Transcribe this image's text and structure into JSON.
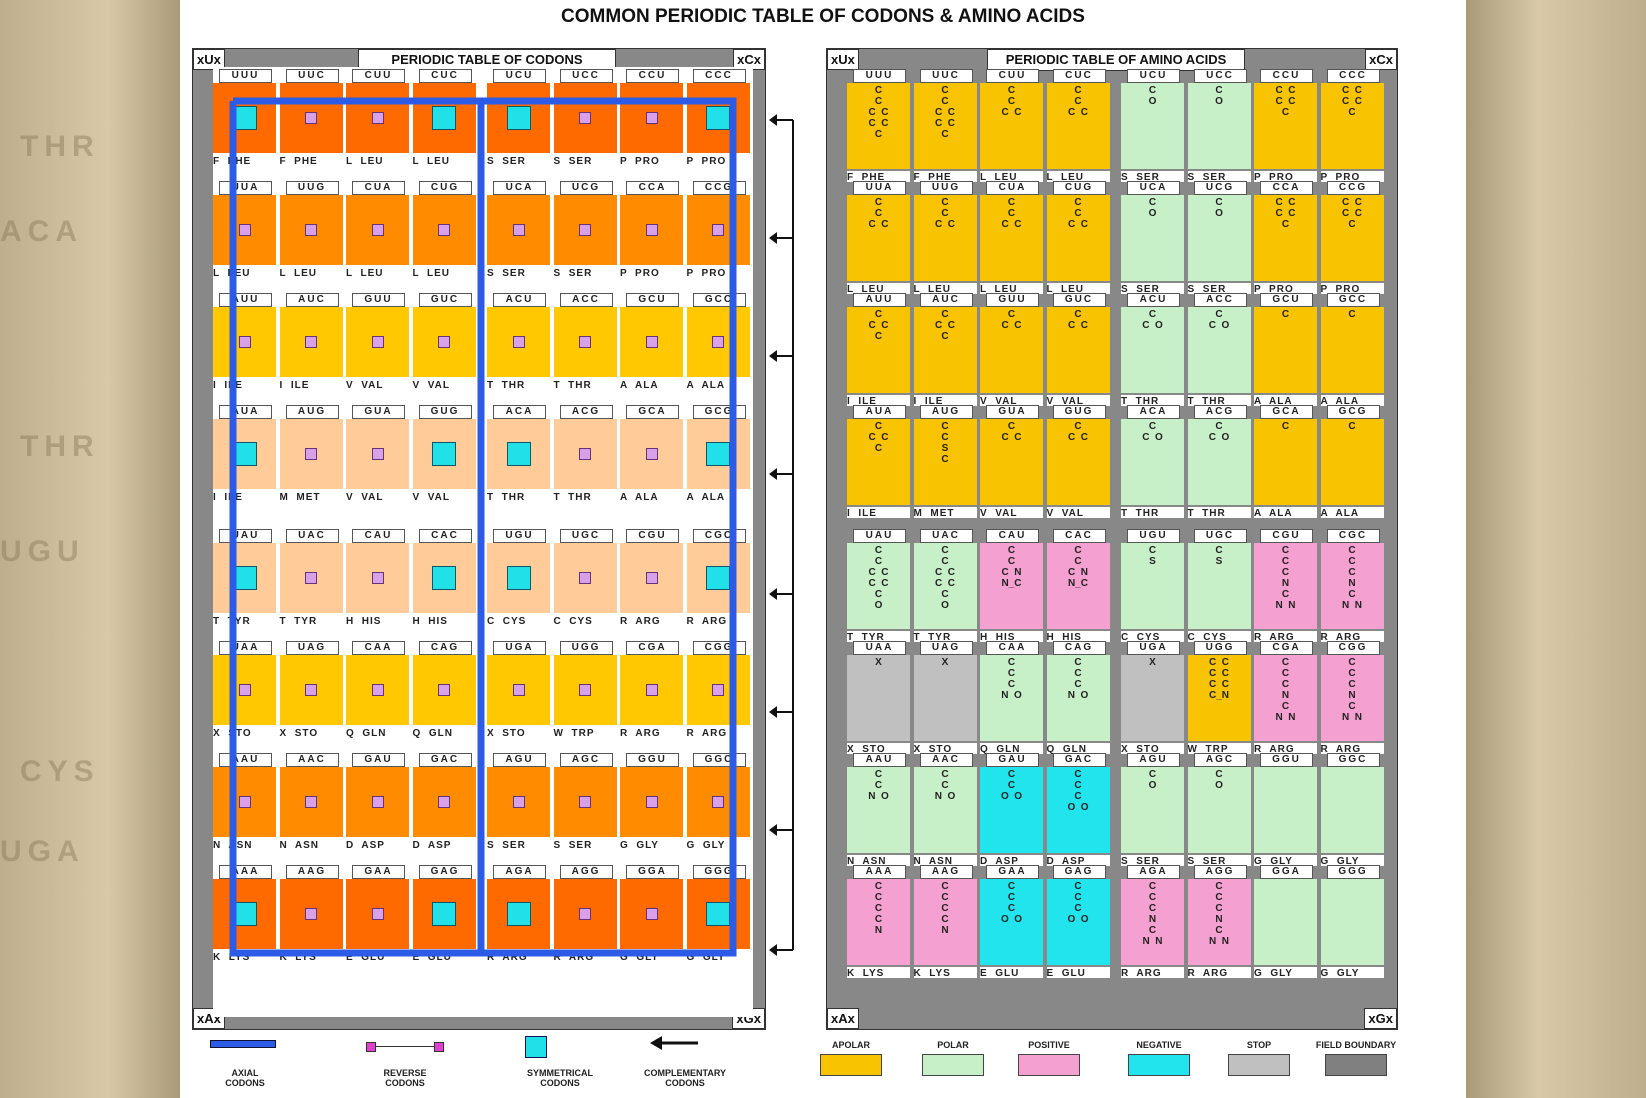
{
  "title": "COMMON PERIODIC TABLE OF CODONS & AMINO ACIDS",
  "left_panel": {
    "tab": "PERIODIC TABLE OF CODONS",
    "corners": [
      "xUx",
      "xCx",
      "xAx",
      "xGx"
    ]
  },
  "right_panel": {
    "tab": "PERIODIC TABLE OF AMINO ACIDS",
    "corners": [
      "xUx",
      "xCx",
      "xAx",
      "xGx"
    ]
  },
  "colors": {
    "apolar": "#f8c300",
    "polar": "#c8f0c8",
    "positive": "#f4a0d0",
    "negative": "#22e4ec",
    "stop": "#c0c0c0",
    "field_boundary": "#808080",
    "codon_red": "#ff6a00",
    "codon_orange": "#ff8c00",
    "codon_yellow": "#ffc800",
    "codon_peach": "#ffcc99",
    "axial": "#2c5be8"
  },
  "rows": [
    [
      {
        "c": "UUU",
        "a": "F  PHE",
        "col": "red",
        "m": "sym"
      },
      {
        "c": "UUC",
        "a": "F  PHE",
        "col": "red",
        "m": "rev"
      },
      {
        "c": "CUU",
        "a": "L  LEU",
        "col": "red",
        "m": "rev"
      },
      {
        "c": "CUC",
        "a": "L  LEU",
        "col": "red",
        "m": "sym"
      },
      {
        "c": "UCU",
        "a": "S  SER",
        "col": "red",
        "m": "sym"
      },
      {
        "c": "UCC",
        "a": "S  SER",
        "col": "red",
        "m": "rev"
      },
      {
        "c": "CCU",
        "a": "P  PRO",
        "col": "red",
        "m": "rev"
      },
      {
        "c": "CCC",
        "a": "P  PRO",
        "col": "red",
        "m": "sym"
      }
    ],
    [
      {
        "c": "UUA",
        "a": "L  LEU",
        "col": "orange",
        "m": "rev"
      },
      {
        "c": "UUG",
        "a": "L  LEU",
        "col": "orange",
        "m": "rev"
      },
      {
        "c": "CUA",
        "a": "L  LEU",
        "col": "orange",
        "m": "rev"
      },
      {
        "c": "CUG",
        "a": "L  LEU",
        "col": "orange",
        "m": "rev"
      },
      {
        "c": "UCA",
        "a": "S  SER",
        "col": "orange",
        "m": "rev"
      },
      {
        "c": "UCG",
        "a": "S  SER",
        "col": "orange",
        "m": "rev"
      },
      {
        "c": "CCA",
        "a": "P  PRO",
        "col": "orange",
        "m": "rev"
      },
      {
        "c": "CCG",
        "a": "P  PRO",
        "col": "orange",
        "m": "rev"
      }
    ],
    [
      {
        "c": "AUU",
        "a": "I  ILE",
        "col": "yellow",
        "m": "rev"
      },
      {
        "c": "AUC",
        "a": "I  ILE",
        "col": "yellow",
        "m": "rev"
      },
      {
        "c": "GUU",
        "a": "V  VAL",
        "col": "yellow",
        "m": "rev"
      },
      {
        "c": "GUC",
        "a": "V  VAL",
        "col": "yellow",
        "m": "rev"
      },
      {
        "c": "ACU",
        "a": "T  THR",
        "col": "yellow",
        "m": "rev"
      },
      {
        "c": "ACC",
        "a": "T  THR",
        "col": "yellow",
        "m": "rev"
      },
      {
        "c": "GCU",
        "a": "A  ALA",
        "col": "yellow",
        "m": "rev"
      },
      {
        "c": "GCC",
        "a": "A  ALA",
        "col": "yellow",
        "m": "rev"
      }
    ],
    [
      {
        "c": "AUA",
        "a": "I  ILE",
        "col": "peach",
        "m": "sym"
      },
      {
        "c": "AUG",
        "a": "M  MET",
        "col": "peach",
        "m": "rev"
      },
      {
        "c": "GUA",
        "a": "V  VAL",
        "col": "peach",
        "m": "rev"
      },
      {
        "c": "GUG",
        "a": "V  VAL",
        "col": "peach",
        "m": "sym"
      },
      {
        "c": "ACA",
        "a": "T  THR",
        "col": "peach",
        "m": "sym"
      },
      {
        "c": "ACG",
        "a": "T  THR",
        "col": "peach",
        "m": "rev"
      },
      {
        "c": "GCA",
        "a": "A  ALA",
        "col": "peach",
        "m": "rev"
      },
      {
        "c": "GCG",
        "a": "A  ALA",
        "col": "peach",
        "m": "sym"
      }
    ],
    [
      {
        "c": "UAU",
        "a": "T  TYR",
        "col": "peach",
        "m": "sym"
      },
      {
        "c": "UAC",
        "a": "T  TYR",
        "col": "peach",
        "m": "rev"
      },
      {
        "c": "CAU",
        "a": "H  HIS",
        "col": "peach",
        "m": "rev"
      },
      {
        "c": "CAC",
        "a": "H  HIS",
        "col": "peach",
        "m": "sym"
      },
      {
        "c": "UGU",
        "a": "C  CYS",
        "col": "peach",
        "m": "sym"
      },
      {
        "c": "UGC",
        "a": "C  CYS",
        "col": "peach",
        "m": "rev"
      },
      {
        "c": "CGU",
        "a": "R  ARG",
        "col": "peach",
        "m": "rev"
      },
      {
        "c": "CGC",
        "a": "R  ARG",
        "col": "peach",
        "m": "sym"
      }
    ],
    [
      {
        "c": "UAA",
        "a": "X  STO",
        "col": "yellow",
        "m": "rev"
      },
      {
        "c": "UAG",
        "a": "X  STO",
        "col": "yellow",
        "m": "rev"
      },
      {
        "c": "CAA",
        "a": "Q  GLN",
        "col": "yellow",
        "m": "rev"
      },
      {
        "c": "CAG",
        "a": "Q  GLN",
        "col": "yellow",
        "m": "rev"
      },
      {
        "c": "UGA",
        "a": "X  STO",
        "col": "yellow",
        "m": "rev"
      },
      {
        "c": "UGG",
        "a": "W  TRP",
        "col": "yellow",
        "m": "rev"
      },
      {
        "c": "CGA",
        "a": "R  ARG",
        "col": "yellow",
        "m": "rev"
      },
      {
        "c": "CGG",
        "a": "R  ARG",
        "col": "yellow",
        "m": "rev"
      }
    ],
    [
      {
        "c": "AAU",
        "a": "N  ASN",
        "col": "orange",
        "m": "rev"
      },
      {
        "c": "AAC",
        "a": "N  ASN",
        "col": "orange",
        "m": "rev"
      },
      {
        "c": "GAU",
        "a": "D  ASP",
        "col": "orange",
        "m": "rev"
      },
      {
        "c": "GAC",
        "a": "D  ASP",
        "col": "orange",
        "m": "rev"
      },
      {
        "c": "AGU",
        "a": "S  SER",
        "col": "orange",
        "m": "rev"
      },
      {
        "c": "AGC",
        "a": "S  SER",
        "col": "orange",
        "m": "rev"
      },
      {
        "c": "GGU",
        "a": "G  GLY",
        "col": "orange",
        "m": "rev"
      },
      {
        "c": "GGC",
        "a": "G  GLY",
        "col": "orange",
        "m": "rev"
      }
    ],
    [
      {
        "c": "AAA",
        "a": "K  LYS",
        "col": "red",
        "m": "sym"
      },
      {
        "c": "AAG",
        "a": "K  LYS",
        "col": "red",
        "m": "rev"
      },
      {
        "c": "GAA",
        "a": "E  GLU",
        "col": "red",
        "m": "rev"
      },
      {
        "c": "GAG",
        "a": "E  GLU",
        "col": "red",
        "m": "sym"
      },
      {
        "c": "AGA",
        "a": "R  ARG",
        "col": "red",
        "m": "sym"
      },
      {
        "c": "AGG",
        "a": "R  ARG",
        "col": "red",
        "m": "rev"
      },
      {
        "c": "GGA",
        "a": "G  GLY",
        "col": "red",
        "m": "rev"
      },
      {
        "c": "GGG",
        "a": "G  GLY",
        "col": "red",
        "m": "sym"
      }
    ]
  ],
  "aa_rows": [
    [
      {
        "t": "apolar",
        "ch": "C\nC\nC  C\nC  C\nC"
      },
      {
        "t": "apolar",
        "ch": "C\nC\nC  C\nC  C\nC"
      },
      {
        "t": "apolar",
        "ch": "C\nC\nC  C"
      },
      {
        "t": "apolar",
        "ch": "C\nC\nC  C"
      },
      {
        "t": "polar",
        "ch": "C\nO"
      },
      {
        "t": "polar",
        "ch": "C\nO"
      },
      {
        "t": "apolar",
        "ch": "C  C\nC  C\nC"
      },
      {
        "t": "apolar",
        "ch": "C  C\nC  C\nC"
      }
    ],
    [
      {
        "t": "apolar",
        "ch": "C\nC\nC  C"
      },
      {
        "t": "apolar",
        "ch": "C\nC\nC  C"
      },
      {
        "t": "apolar",
        "ch": "C\nC\nC  C"
      },
      {
        "t": "apolar",
        "ch": "C\nC\nC  C"
      },
      {
        "t": "polar",
        "ch": "C\nO"
      },
      {
        "t": "polar",
        "ch": "C\nO"
      },
      {
        "t": "apolar",
        "ch": "C  C\nC  C\nC"
      },
      {
        "t": "apolar",
        "ch": "C  C\nC  C\nC"
      }
    ],
    [
      {
        "t": "apolar",
        "ch": "C\nC  C\nC"
      },
      {
        "t": "apolar",
        "ch": "C\nC  C\nC"
      },
      {
        "t": "apolar",
        "ch": "C\nC  C"
      },
      {
        "t": "apolar",
        "ch": "C\nC  C"
      },
      {
        "t": "polar",
        "ch": "C\nC  O"
      },
      {
        "t": "polar",
        "ch": "C\nC  O"
      },
      {
        "t": "apolar",
        "ch": "C"
      },
      {
        "t": "apolar",
        "ch": "C"
      }
    ],
    [
      {
        "t": "apolar",
        "ch": "C\nC  C\nC"
      },
      {
        "t": "apolar",
        "ch": "C\nC\nS\nC"
      },
      {
        "t": "apolar",
        "ch": "C\nC  C"
      },
      {
        "t": "apolar",
        "ch": "C\nC  C"
      },
      {
        "t": "polar",
        "ch": "C\nC  O"
      },
      {
        "t": "polar",
        "ch": "C\nC  O"
      },
      {
        "t": "apolar",
        "ch": "C"
      },
      {
        "t": "apolar",
        "ch": "C"
      }
    ],
    [
      {
        "t": "polar",
        "ch": "C\nC\nC  C\nC  C\nC\nO"
      },
      {
        "t": "polar",
        "ch": "C\nC\nC  C\nC  C\nC\nO"
      },
      {
        "t": "positive",
        "ch": "C\nC\nC  N\nN_C"
      },
      {
        "t": "positive",
        "ch": "C\nC\nC  N\nN_C"
      },
      {
        "t": "polar",
        "ch": "C\nS"
      },
      {
        "t": "polar",
        "ch": "C\nS"
      },
      {
        "t": "positive",
        "ch": "C\nC\nC\nN\nC\nN  N"
      },
      {
        "t": "positive",
        "ch": "C\nC\nC\nN\nC\nN  N"
      }
    ],
    [
      {
        "t": "stop",
        "ch": "X"
      },
      {
        "t": "stop",
        "ch": "X"
      },
      {
        "t": "polar",
        "ch": "C\nC\nC\nN  O"
      },
      {
        "t": "polar",
        "ch": "C\nC\nC\nN  O"
      },
      {
        "t": "stop",
        "ch": "X"
      },
      {
        "t": "apolar",
        "ch": "C  C\nC  C\nC  C\nC_N"
      },
      {
        "t": "positive",
        "ch": "C\nC\nC\nN\nC\nN  N"
      },
      {
        "t": "positive",
        "ch": "C\nC\nC\nN\nC\nN  N"
      }
    ],
    [
      {
        "t": "polar",
        "ch": "C\nC\nN  O"
      },
      {
        "t": "polar",
        "ch": "C\nC\nN  O"
      },
      {
        "t": "negative",
        "ch": "C\nC\nO  O"
      },
      {
        "t": "negative",
        "ch": "C\nC\nC\nO  O"
      },
      {
        "t": "polar",
        "ch": "C\nO"
      },
      {
        "t": "polar",
        "ch": "C\nO"
      },
      {
        "t": "polar",
        "ch": ""
      },
      {
        "t": "polar",
        "ch": ""
      }
    ],
    [
      {
        "t": "positive",
        "ch": "C\nC\nC\nC\nN"
      },
      {
        "t": "positive",
        "ch": "C\nC\nC\nC\nN"
      },
      {
        "t": "negative",
        "ch": "C\nC\nC\nO  O"
      },
      {
        "t": "negative",
        "ch": "C\nC\nC\nO  O"
      },
      {
        "t": "positive",
        "ch": "C\nC\nC\nN\nC\nN  N"
      },
      {
        "t": "positive",
        "ch": "C\nC\nC\nN\nC\nN  N"
      },
      {
        "t": "polar",
        "ch": ""
      },
      {
        "t": "polar",
        "ch": ""
      }
    ]
  ],
  "legend_left": [
    {
      "label": "AXIAL\nCODONS",
      "icon": "axial-icon"
    },
    {
      "label": "REVERSE\nCODONS",
      "icon": "reverse-icon"
    },
    {
      "label": "SYMMETRICAL\nCODONS",
      "icon": "symmetrical-icon"
    },
    {
      "label": "COMPLEMENTARY\nCODONS",
      "icon": "arrow-left-icon"
    }
  ],
  "legend_right": [
    {
      "label": "APOLAR",
      "key": "apolar"
    },
    {
      "label": "POLAR",
      "key": "polar"
    },
    {
      "label": "POSITIVE",
      "key": "positive"
    },
    {
      "label": "NEGATIVE",
      "key": "negative"
    },
    {
      "label": "STOP",
      "key": "stop"
    },
    {
      "label": "FIELD BOUNDARY",
      "key": "field_boundary"
    }
  ]
}
